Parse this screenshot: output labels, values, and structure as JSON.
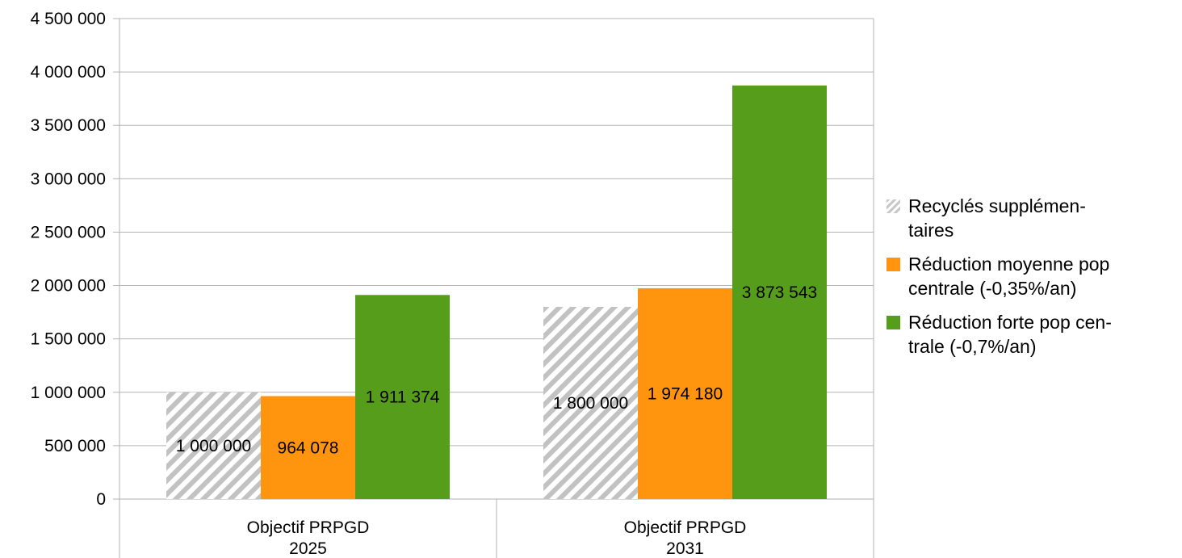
{
  "chart_data": {
    "type": "bar",
    "categories": [
      [
        "Objectif PRPGD",
        "2025"
      ],
      [
        "Objectif PRPGD",
        "2031"
      ]
    ],
    "series": [
      {
        "name": "Recyclés supplémentaires",
        "display_name": [
          "Recyclés supplémen-",
          "taires"
        ],
        "values": [
          1000000,
          1800000
        ],
        "labels": [
          "1 000 000",
          "1 800 000"
        ],
        "color": "#bdbdbd",
        "pattern": "diagonal-hatch"
      },
      {
        "name": "Réduction moyenne pop centrale (-0,35%/an)",
        "display_name": [
          "Réduction moyenne pop",
          "centrale (-0,35%/an)"
        ],
        "values": [
          964078,
          1974180
        ],
        "labels": [
          "964 078",
          "1 974 180"
        ],
        "color": "#ff950e"
      },
      {
        "name": "Réduction forte pop centrale (-0,7%/an)",
        "display_name": [
          "Réduction forte pop cen-",
          "trale (-0,7%/an)"
        ],
        "values": [
          1911374,
          3873543
        ],
        "labels": [
          "1 911 374",
          "3 873 543"
        ],
        "color": "#579d1c"
      }
    ],
    "yticks": [
      0,
      500000,
      1000000,
      1500000,
      2000000,
      2500000,
      3000000,
      3500000,
      4000000,
      4500000
    ],
    "ytick_labels": [
      "0",
      "500 000",
      "1 000 000",
      "1 500 000",
      "2 000 000",
      "2 500 000",
      "3 000 000",
      "3 500 000",
      "4 000 000",
      "4 500 000"
    ],
    "ylim": [
      0,
      4500000
    ],
    "grid": true,
    "legend_position": "right"
  }
}
